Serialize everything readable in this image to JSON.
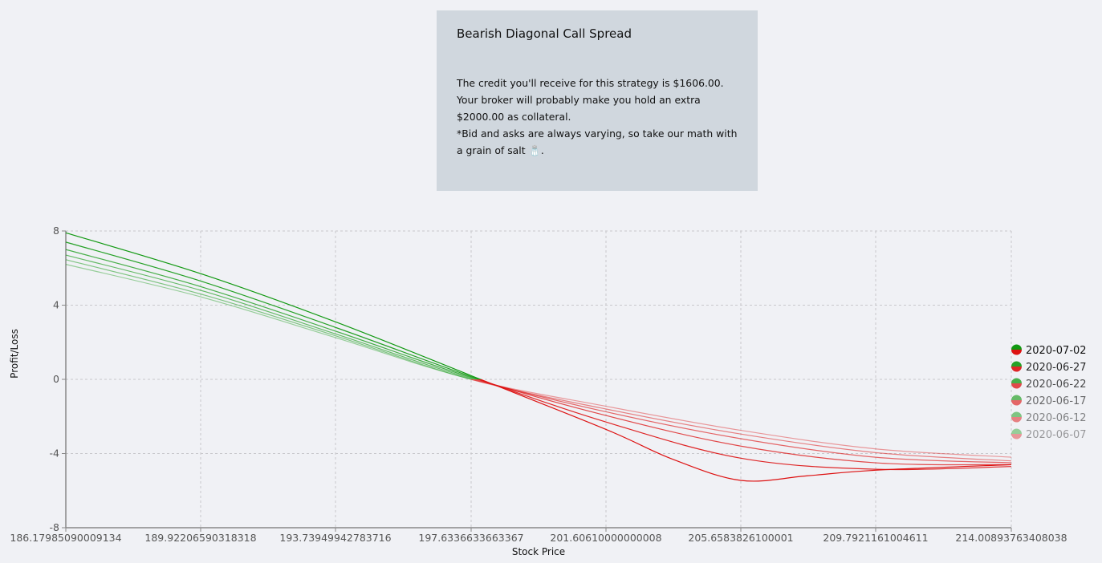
{
  "card": {
    "title": "Bearish Diagonal Call Spread",
    "lines": [
      "The credit you'll receive for this strategy is $1606.00.",
      "Your broker will probably make you hold an extra",
      "$2000.00 as collateral.",
      "*Bid and asks are always varying, so take our math with",
      "a grain of salt 🧂."
    ]
  },
  "colors": {
    "green": "#119911",
    "red": "#dd1111",
    "grid": "#c8c8cc",
    "axis": "#888888"
  },
  "chart_data": {
    "type": "line",
    "xlabel": "Stock Price",
    "ylabel": "Profit/Loss",
    "xlim": [
      186.17985090009134,
      214.00893763408038
    ],
    "ylim": [
      -8,
      8
    ],
    "x_ticks": [
      {
        "value": 186.17985090009134,
        "label": "186.17985090009134"
      },
      {
        "value": 189.92206590318318,
        "label": "189.92206590318318"
      },
      {
        "value": 193.73949942783716,
        "label": "193.73949942783716"
      },
      {
        "value": 197.6336633663367,
        "label": "197.6336633663367"
      },
      {
        "value": 201.60610000000008,
        "label": "201.60610000000008"
      },
      {
        "value": 205.6583826100001,
        "label": "205.6583826100001"
      },
      {
        "value": 209.7921161004611,
        "label": "209.7921161004611"
      },
      {
        "value": 214.00893763408038,
        "label": "214.00893763408038"
      }
    ],
    "y_ticks": [
      -8,
      -4,
      0,
      4,
      8
    ],
    "grid": true,
    "legend_position": "right",
    "series": [
      {
        "name": "2020-07-02",
        "x": [
          186.18,
          189.922,
          193.739,
          197.634,
          201.606,
          203.6,
          205.658,
          207.7,
          209.792,
          214.009
        ],
        "y": [
          7.9,
          5.7,
          3.1,
          0.2,
          -2.7,
          -4.3,
          -5.45,
          -5.2,
          -4.9,
          -4.6
        ]
      },
      {
        "name": "2020-06-27",
        "x": [
          186.18,
          189.922,
          193.739,
          197.634,
          201.606,
          205.658,
          209.792,
          214.009
        ],
        "y": [
          7.4,
          5.3,
          2.8,
          0.15,
          -2.3,
          -4.25,
          -4.85,
          -4.7
        ]
      },
      {
        "name": "2020-06-22",
        "x": [
          186.18,
          189.922,
          193.739,
          197.634,
          201.606,
          205.658,
          209.792,
          214.009
        ],
        "y": [
          7.0,
          5.0,
          2.6,
          0.1,
          -1.95,
          -3.6,
          -4.5,
          -4.6
        ]
      },
      {
        "name": "2020-06-17",
        "x": [
          186.18,
          189.922,
          193.739,
          197.634,
          201.606,
          205.658,
          209.792,
          214.009
        ],
        "y": [
          6.7,
          4.8,
          2.45,
          0.05,
          -1.75,
          -3.2,
          -4.2,
          -4.5
        ]
      },
      {
        "name": "2020-06-12",
        "x": [
          186.18,
          189.922,
          193.739,
          197.634,
          201.606,
          205.658,
          209.792,
          214.009
        ],
        "y": [
          6.45,
          4.6,
          2.35,
          0.0,
          -1.6,
          -2.95,
          -3.95,
          -4.4
        ]
      },
      {
        "name": "2020-06-07",
        "x": [
          186.18,
          189.922,
          193.739,
          197.634,
          201.606,
          205.658,
          209.792,
          214.009
        ],
        "y": [
          6.2,
          4.45,
          2.25,
          0.0,
          -1.45,
          -2.75,
          -3.75,
          -4.2
        ]
      }
    ]
  }
}
